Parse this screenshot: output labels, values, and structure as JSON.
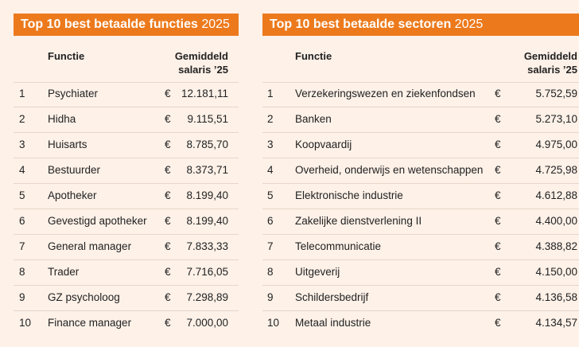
{
  "tables": [
    {
      "title": "Top 10 best betaalde functies",
      "year": "2025",
      "columns": {
        "name": "Functie",
        "salary": [
          "Gemiddeld",
          "salaris ’25"
        ]
      },
      "currency": "€",
      "rows": [
        [
          "1",
          "Psychiater",
          "12.181,11"
        ],
        [
          "2",
          "Hidha",
          "9.115,51"
        ],
        [
          "3",
          "Huisarts",
          "8.785,70"
        ],
        [
          "4",
          "Bestuurder",
          "8.373,71"
        ],
        [
          "5",
          "Apotheker",
          "8.199,40"
        ],
        [
          "6",
          "Gevestigd apotheker",
          "8.199,40"
        ],
        [
          "7",
          "General manager",
          "7.833,33"
        ],
        [
          "8",
          "Trader",
          "7.716,05"
        ],
        [
          "9",
          "GZ psycholoog",
          "7.298,89"
        ],
        [
          "10",
          "Finance manager",
          "7.000,00"
        ]
      ]
    },
    {
      "title": "Top 10 best betaalde sectoren",
      "year": "2025",
      "columns": {
        "name": "Functie",
        "salary": [
          "Gemiddeld",
          "salaris ’25"
        ]
      },
      "currency": "€",
      "rows": [
        [
          "1",
          "Verzekeringswezen en ziekenfondsen",
          "5.752,59"
        ],
        [
          "2",
          "Banken",
          "5.273,10"
        ],
        [
          "3",
          "Koopvaardij",
          "4.975,00"
        ],
        [
          "4",
          "Overheid, onderwijs en wetenschappen",
          "4.725,98"
        ],
        [
          "5",
          "Elektronische industrie",
          "4.612,88"
        ],
        [
          "6",
          "Zakelijke dienstverlening II",
          "4.400,00"
        ],
        [
          "7",
          "Telecommunicatie",
          "4.388,82"
        ],
        [
          "8",
          "Uitgeverij",
          "4.150,00"
        ],
        [
          "9",
          "Schildersbedrijf",
          "4.136,58"
        ],
        [
          "10",
          "Metaal industrie",
          "4.134,57"
        ]
      ]
    }
  ]
}
